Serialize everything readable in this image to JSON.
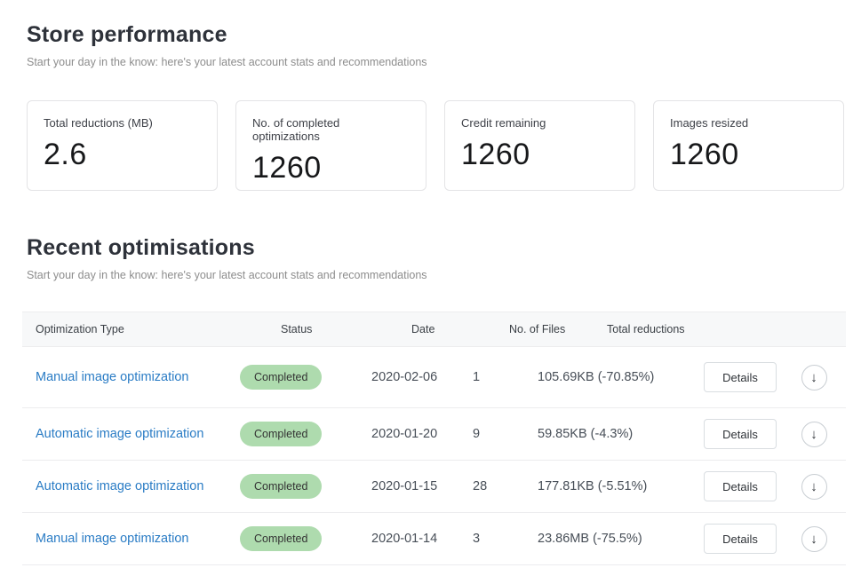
{
  "header": {
    "title": "Store performance",
    "subtitle": "Start your day in the know: here's your latest account stats and recommendations"
  },
  "stats": [
    {
      "label": "Total reductions (MB)",
      "value": "2.6"
    },
    {
      "label": "No. of completed optimizations",
      "value": "1260"
    },
    {
      "label": "Credit remaining",
      "value": "1260"
    },
    {
      "label": "Images resized",
      "value": "1260"
    }
  ],
  "section": {
    "title": "Recent optimisations",
    "subtitle": "Start your day in the know: here's your latest account stats and recommendations"
  },
  "table": {
    "columns": [
      "Optimization Type",
      "Status",
      "Date",
      "No. of Files",
      "Total reductions"
    ],
    "download_glyph": "↓",
    "rows": [
      {
        "type": "Manual image optimization",
        "status": "Completed",
        "date": "2020-02-06",
        "files": "1",
        "reduction": "105.69KB (-70.85%)",
        "details_label": "Details"
      },
      {
        "type": "Automatic image optimization",
        "status": "Completed",
        "date": "2020-01-20",
        "files": "9",
        "reduction": "59.85KB (-4.3%)",
        "details_label": "Details"
      },
      {
        "type": "Automatic image optimization",
        "status": "Completed",
        "date": "2020-01-15",
        "files": "28",
        "reduction": "177.81KB (-5.51%)",
        "details_label": "Details"
      },
      {
        "type": "Manual image optimization",
        "status": "Completed",
        "date": "2020-01-14",
        "files": "3",
        "reduction": "23.86MB (-75.5%)",
        "details_label": "Details"
      }
    ]
  },
  "colors": {
    "link": "#2a7cc5",
    "badge_bg": "#aedbae",
    "badge_text": "#333333",
    "table_header_bg": "#f7f8f9"
  }
}
